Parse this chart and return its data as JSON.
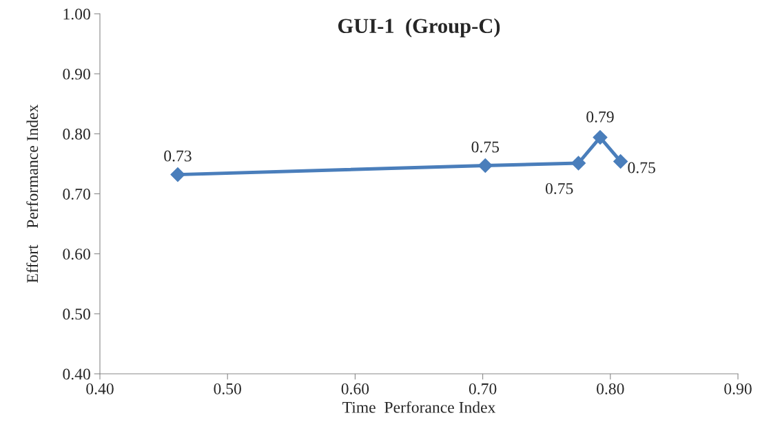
{
  "chart_data": {
    "type": "line",
    "title": "GUI-1  (Group-C)",
    "xlabel": "Time  Perforance Index",
    "ylabel": "Effort    Performance Index",
    "x": [
      0.461,
      0.702,
      0.775,
      0.792,
      0.808
    ],
    "series": [
      {
        "color": "#4a7ebb",
        "values": [
          0.732,
          0.747,
          0.751,
          0.794,
          0.754
        ],
        "value_labels": [
          "0.73",
          "0.75",
          "0.75",
          "0.79",
          "0.75"
        ]
      }
    ],
    "xlim": [
      0.4,
      0.9
    ],
    "xticks": [
      {
        "value": 0.4,
        "label": "0.40"
      },
      {
        "value": 0.5,
        "label": "0.50"
      },
      {
        "value": 0.6,
        "label": "0.60"
      },
      {
        "value": 0.7,
        "label": "0.70"
      },
      {
        "value": 0.8,
        "label": "0.80"
      },
      {
        "value": 0.9,
        "label": "0.90"
      }
    ],
    "ylim": [
      0.4,
      1.0
    ],
    "yticks": [
      {
        "value": 0.4,
        "label": "0.40"
      },
      {
        "value": 0.5,
        "label": "0.50"
      },
      {
        "value": 0.6,
        "label": "0.60"
      },
      {
        "value": 0.7,
        "label": "0.70"
      },
      {
        "value": 0.8,
        "label": "0.80"
      },
      {
        "value": 0.9,
        "label": "0.90"
      },
      {
        "value": 1.0,
        "label": "1.00"
      }
    ],
    "grid": false,
    "marker": "diamond",
    "line_style": "solid"
  }
}
